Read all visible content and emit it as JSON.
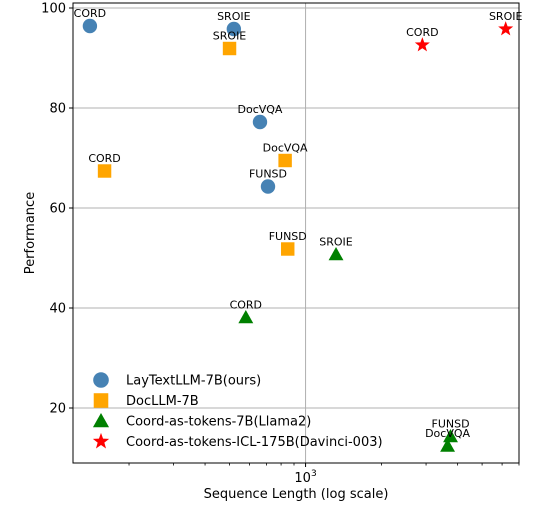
{
  "chart_data": {
    "type": "scatter",
    "title": "",
    "xlabel": "Sequence Length (log scale)",
    "ylabel": "Performance",
    "xscale": "log",
    "xlim": [
      120,
      7000
    ],
    "ylim": [
      9,
      101
    ],
    "grid": true,
    "legend_position": "lower-left",
    "x_ticks": [
      {
        "value": 1000,
        "label": "10",
        "exp": "3"
      }
    ],
    "y_ticks": [
      {
        "value": 20,
        "label": "20"
      },
      {
        "value": 40,
        "label": "40"
      },
      {
        "value": 60,
        "label": "60"
      },
      {
        "value": 80,
        "label": "80"
      },
      {
        "value": 100,
        "label": "100"
      }
    ],
    "series": [
      {
        "name": "LayTextLLM-7B(ours)",
        "marker": "circle",
        "color": "#4682b4",
        "points": [
          {
            "x": 140,
            "y": 96.4,
            "label": "CORD"
          },
          {
            "x": 520,
            "y": 95.8,
            "label": "SROIE"
          },
          {
            "x": 660,
            "y": 77.2,
            "label": "DocVQA"
          },
          {
            "x": 710,
            "y": 64.3,
            "label": "FUNSD"
          }
        ]
      },
      {
        "name": "DocLLM-7B",
        "marker": "square",
        "color": "#ffa500",
        "points": [
          {
            "x": 160,
            "y": 67.4,
            "label": "CORD"
          },
          {
            "x": 500,
            "y": 91.9,
            "label": "SROIE"
          },
          {
            "x": 830,
            "y": 69.5,
            "label": "DocVQA"
          },
          {
            "x": 850,
            "y": 51.8,
            "label": "FUNSD"
          }
        ]
      },
      {
        "name": "Coord-as-tokens-7B(Llama2)",
        "marker": "triangle",
        "color": "#008000",
        "points": [
          {
            "x": 580,
            "y": 38.1,
            "label": "CORD"
          },
          {
            "x": 1320,
            "y": 50.7,
            "label": "SROIE"
          },
          {
            "x": 3750,
            "y": 14.3,
            "label": "FUNSD"
          },
          {
            "x": 3650,
            "y": 12.4,
            "label": "DocVQA"
          }
        ]
      },
      {
        "name": "Coord-as-tokens-ICL-175B(Davinci-003)",
        "marker": "star",
        "color": "#ff0000",
        "points": [
          {
            "x": 2900,
            "y": 92.6,
            "label": "CORD"
          },
          {
            "x": 6200,
            "y": 95.8,
            "label": "SROIE"
          }
        ]
      }
    ]
  }
}
